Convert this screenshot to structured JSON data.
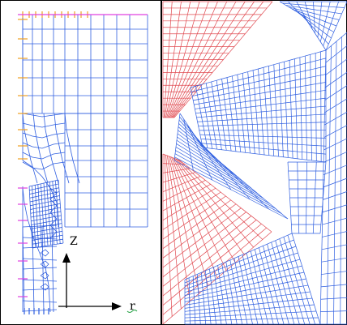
{
  "axes": {
    "z_label": "Z",
    "r_label": "r"
  },
  "colors": {
    "mesh_blue": "#2f5fe0",
    "mesh_dense": "#1f4fd8",
    "mesh_red": "#e0484f",
    "constraint_orange": "#f0a020",
    "constraint_magenta": "#e040e0",
    "border": "#000000"
  }
}
